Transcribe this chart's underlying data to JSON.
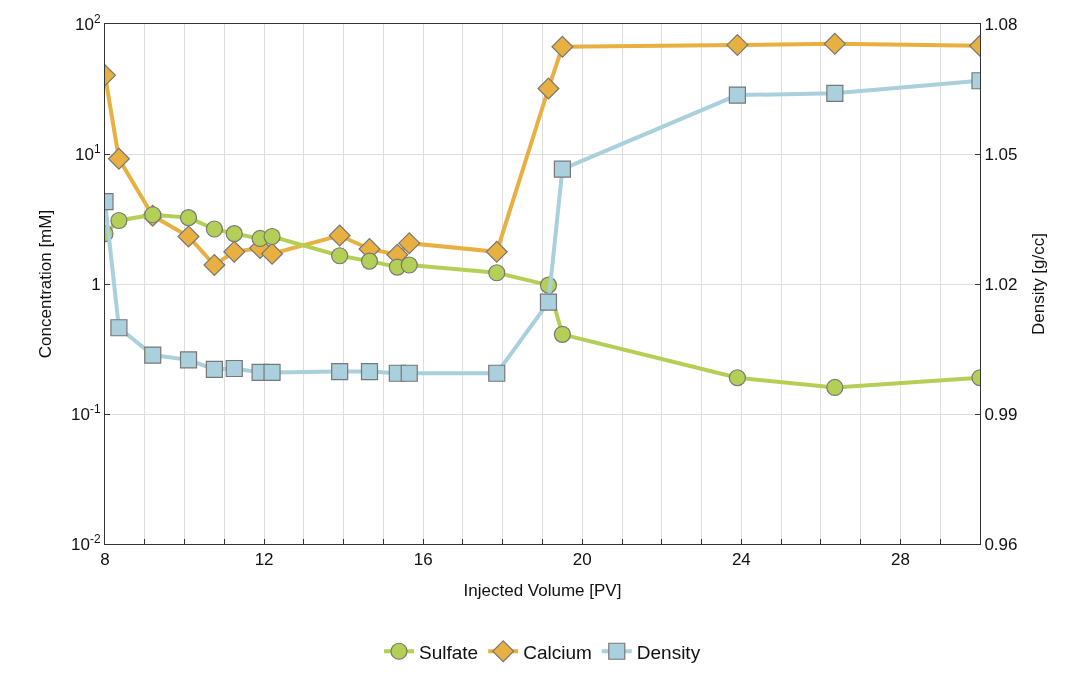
{
  "chart_data": {
    "type": "line",
    "xlabel": "Injected Volume [PV]",
    "ylabel": "Concentration [mM]",
    "y2label": "Density [g/cc]",
    "x": [
      8.0,
      8.35,
      9.2,
      10.1,
      10.75,
      11.25,
      11.9,
      12.2,
      13.9,
      14.65,
      15.35,
      15.65,
      17.85,
      19.15,
      19.5,
      23.9,
      26.35,
      30.0
    ],
    "series": [
      {
        "name": "Sulfate",
        "color": "#b3cf55",
        "marker": "circle",
        "values": [
          2.44,
          3.08,
          3.41,
          3.24,
          2.65,
          2.44,
          2.24,
          2.32,
          1.65,
          1.5,
          1.35,
          1.4,
          1.22,
          0.98,
          0.41,
          0.19,
          0.16,
          0.19
        ]
      },
      {
        "name": "Calcium",
        "color": "#e8b040",
        "marker": "diamond",
        "values": [
          40.3,
          9.2,
          3.35,
          2.32,
          1.4,
          1.77,
          1.89,
          1.71,
          2.36,
          1.86,
          1.68,
          2.06,
          1.77,
          31.9,
          66.8,
          69,
          70.4,
          68
        ]
      },
      {
        "name": "Density",
        "color": "#a9d0dc",
        "marker": "square",
        "axis": "y2",
        "values": [
          1.039,
          1.0099,
          1.0036,
          1.0025,
          1.0003,
          1.0005,
          0.9996,
          0.9996,
          0.9998,
          0.9998,
          0.9994,
          0.9994,
          0.9994,
          1.0158,
          1.0465,
          1.0636,
          1.064,
          1.0669
        ]
      }
    ],
    "xlim": [
      8,
      30
    ],
    "xticks": [
      8,
      {
        "value": 9,
        "label": null
      },
      {
        "value": 10,
        "label": null
      },
      {
        "value": 11,
        "label": null
      },
      12,
      {
        "value": 13,
        "label": null
      },
      {
        "value": 14,
        "label": null
      },
      {
        "value": 15,
        "label": null
      },
      16,
      {
        "value": 17,
        "label": null
      },
      {
        "value": 18,
        "label": null
      },
      {
        "value": 19,
        "label": null
      },
      20,
      {
        "value": 21,
        "label": null
      },
      {
        "value": 22,
        "label": null
      },
      {
        "value": 23,
        "label": null
      },
      24,
      {
        "value": 25,
        "label": null
      },
      {
        "value": 26,
        "label": null
      },
      {
        "value": 27,
        "label": null
      },
      28,
      {
        "value": 29,
        "label": null
      }
    ],
    "log": "y",
    "ylim": [
      0.01,
      100
    ],
    "yticks": [
      {
        "value": 0.01,
        "label": "10$^{-2}$"
      },
      {
        "value": 0.1,
        "label": "10$^{-1}$"
      },
      1,
      {
        "value": 10,
        "label": "10$^{1}$"
      },
      {
        "value": 100,
        "label": "10$^{2}$"
      }
    ],
    "y2lim": [
      0.96,
      1.08
    ],
    "y2ticks": [
      0.96,
      0.99,
      1.02,
      1.05,
      1.08
    ],
    "grid": true,
    "legend": "bottom"
  }
}
